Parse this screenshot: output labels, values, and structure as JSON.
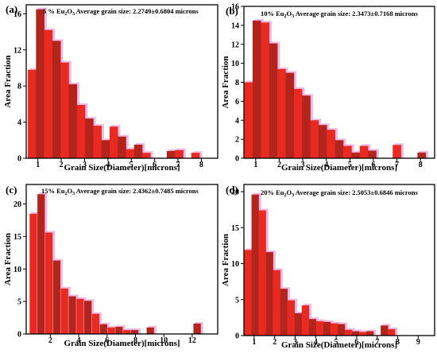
{
  "colors": {
    "bar": "#e82a21",
    "bar_dark": "#b3241d",
    "shadow": "#f3b8e3",
    "axis": "#000000"
  },
  "chart_data": [
    {
      "type": "bar",
      "panel_label": "(a)",
      "title_pct": "5 % Eu",
      "title_rest": "Average grain size: 2.2749±0.6804 microns",
      "xlabel": "Grain Size(Diameter)[microns]",
      "ylabel": "Area Fraction",
      "xlim": [
        0.5,
        8.7
      ],
      "ylim": [
        0,
        17
      ],
      "xticks": [
        1,
        2,
        3,
        4,
        5,
        6,
        7,
        8
      ],
      "yticks": [
        0,
        4,
        8,
        12,
        16
      ],
      "bin_width": 0.36,
      "x": [
        0.75,
        1.1,
        1.45,
        1.8,
        2.15,
        2.5,
        2.85,
        3.2,
        3.55,
        3.9,
        4.25,
        4.6,
        4.95,
        5.3,
        5.65,
        6.0,
        6.35,
        6.7,
        7.05,
        7.4,
        7.75,
        8.1,
        8.45
      ],
      "values": [
        9.8,
        16.5,
        14.2,
        13.0,
        10.6,
        8.2,
        5.9,
        4.4,
        3.6,
        2.0,
        3.5,
        2.4,
        1.0,
        1.5,
        0.6,
        0,
        0,
        0.8,
        0.9,
        0,
        0.6,
        0,
        0
      ]
    },
    {
      "type": "bar",
      "panel_label": "(b)",
      "title_pct": "10% Eu",
      "title_rest": "Average grain size: 2.3473±0.7168 microns",
      "xlabel": "Grain Size(Diameter)[microns]",
      "ylabel": "Area Fraction",
      "xlim": [
        0.5,
        8.6
      ],
      "ylim": [
        0,
        16
      ],
      "xticks": [
        1,
        2,
        3,
        4,
        5,
        6,
        7,
        8
      ],
      "yticks": [
        0,
        2,
        4,
        6,
        8,
        10,
        12,
        14,
        16
      ],
      "bin_width": 0.36,
      "x": [
        0.7,
        1.05,
        1.4,
        1.75,
        2.1,
        2.45,
        2.8,
        3.15,
        3.5,
        3.85,
        4.2,
        4.55,
        4.9,
        5.25,
        5.6,
        5.95,
        6.3,
        6.65,
        7.0,
        7.35,
        7.7,
        8.05,
        8.4
      ],
      "values": [
        8.0,
        14.5,
        14.3,
        12.1,
        9.4,
        9.0,
        7.3,
        6.6,
        4.0,
        3.5,
        3.0,
        1.9,
        1.3,
        0.6,
        1.3,
        0.8,
        0,
        0,
        1.4,
        0,
        0,
        0.6,
        0
      ]
    },
    {
      "type": "bar",
      "panel_label": "(c)",
      "title_pct": "15% Eu",
      "title_rest": "Average grain size: 2.4362±0.7485 microns",
      "xlabel": "Grain Size(Diameter)[microns]",
      "ylabel": "Area Fraction",
      "xlim": [
        0.3,
        13.8
      ],
      "ylim": [
        0,
        23
      ],
      "xticks": [
        2,
        4,
        6,
        8,
        10,
        12
      ],
      "yticks": [
        0,
        5,
        10,
        15,
        20
      ],
      "bin_width": 0.52,
      "x": [
        0.8,
        1.35,
        1.9,
        2.45,
        3.0,
        3.55,
        4.1,
        4.65,
        5.2,
        5.75,
        6.3,
        6.85,
        7.4,
        7.95,
        8.5,
        9.05,
        9.6,
        10.15,
        10.7,
        11.25,
        11.8,
        12.35,
        12.9,
        13.45
      ],
      "values": [
        18.5,
        21.5,
        15.6,
        11.3,
        7.0,
        5.8,
        5.4,
        5.1,
        3.1,
        1.5,
        1.0,
        1.1,
        0.6,
        0.6,
        0,
        1.0,
        0,
        0,
        0,
        0,
        0,
        1.6,
        0,
        0
      ]
    },
    {
      "type": "bar",
      "panel_label": "(d)",
      "title_pct": "20% Eu",
      "title_rest": "Average grain size: 2.5053±0.6846 microns",
      "xlabel": "Grain Size(Diameter)[microns]",
      "ylabel": "Area Fraction",
      "xlim": [
        0.5,
        9.8
      ],
      "ylim": [
        0,
        21
      ],
      "xticks": [
        1,
        2,
        3,
        4,
        5,
        6,
        7,
        8,
        9
      ],
      "yticks": [
        0,
        5,
        10,
        15,
        20
      ],
      "bin_width": 0.36,
      "x": [
        0.7,
        1.05,
        1.4,
        1.75,
        2.1,
        2.45,
        2.8,
        3.15,
        3.5,
        3.85,
        4.2,
        4.55,
        4.9,
        5.25,
        5.6,
        5.95,
        6.3,
        6.65,
        7.0,
        7.35,
        7.7,
        8.05,
        8.4,
        8.75,
        9.1,
        9.45
      ],
      "values": [
        11.9,
        19.6,
        17.4,
        11.6,
        9.1,
        6.5,
        4.9,
        3.1,
        4.2,
        2.3,
        2.0,
        1.9,
        1.7,
        1.6,
        0.8,
        0.6,
        0.5,
        0.6,
        0,
        1.4,
        0.9,
        0,
        0,
        0,
        0,
        0
      ]
    }
  ]
}
